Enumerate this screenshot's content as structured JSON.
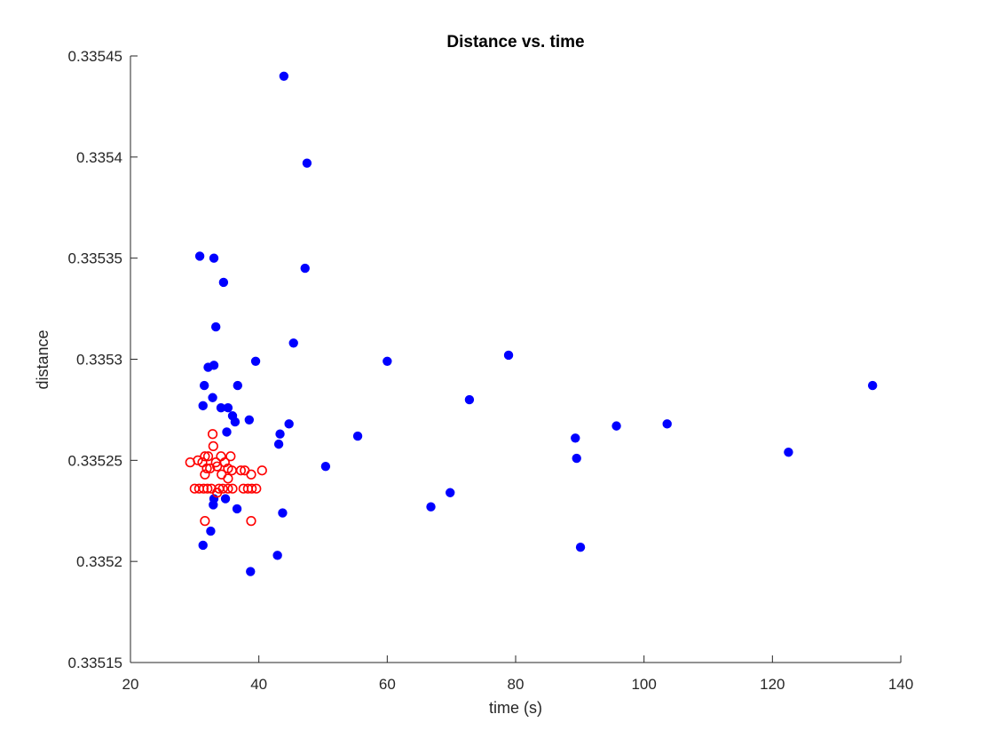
{
  "chart_data": {
    "type": "scatter",
    "title": "Distance vs. time",
    "xlabel": "time (s)",
    "ylabel": "distance",
    "xlim": [
      20,
      140
    ],
    "ylim": [
      0.33515,
      0.33545
    ],
    "xticks": [
      20,
      40,
      60,
      80,
      100,
      120,
      140
    ],
    "yticks": [
      0.33515,
      0.3352,
      0.33525,
      0.3353,
      0.33535,
      0.3354,
      0.33545
    ],
    "ytick_labels": [
      "0.33515",
      "0.3352",
      "0.33525",
      "0.3353",
      "0.33535",
      "0.3354",
      "0.33545"
    ],
    "grid": false,
    "series": [
      {
        "marker": "filled-circle",
        "color": "#0000ff",
        "points": [
          [
            43.9,
            0.33544
          ],
          [
            47.5,
            0.335397
          ],
          [
            30.8,
            0.335351
          ],
          [
            33.0,
            0.33535
          ],
          [
            47.2,
            0.335345
          ],
          [
            34.5,
            0.335338
          ],
          [
            33.3,
            0.335316
          ],
          [
            45.4,
            0.335308
          ],
          [
            32.1,
            0.335296
          ],
          [
            33.0,
            0.335297
          ],
          [
            39.5,
            0.335299
          ],
          [
            60.0,
            0.335299
          ],
          [
            78.9,
            0.335302
          ],
          [
            31.5,
            0.335287
          ],
          [
            36.7,
            0.335287
          ],
          [
            135.6,
            0.335287
          ],
          [
            32.8,
            0.335281
          ],
          [
            72.8,
            0.33528
          ],
          [
            31.3,
            0.335277
          ],
          [
            34.1,
            0.335276
          ],
          [
            35.2,
            0.335276
          ],
          [
            35.9,
            0.335272
          ],
          [
            38.5,
            0.33527
          ],
          [
            36.3,
            0.335269
          ],
          [
            44.7,
            0.335268
          ],
          [
            95.7,
            0.335267
          ],
          [
            103.6,
            0.335268
          ],
          [
            35.0,
            0.335264
          ],
          [
            43.3,
            0.335263
          ],
          [
            55.4,
            0.335262
          ],
          [
            89.3,
            0.335261
          ],
          [
            43.1,
            0.335258
          ],
          [
            122.5,
            0.335254
          ],
          [
            89.5,
            0.335251
          ],
          [
            50.4,
            0.335247
          ],
          [
            69.8,
            0.335234
          ],
          [
            33.0,
            0.335231
          ],
          [
            32.9,
            0.335228
          ],
          [
            34.8,
            0.335231
          ],
          [
            66.8,
            0.335227
          ],
          [
            36.6,
            0.335226
          ],
          [
            43.7,
            0.335224
          ],
          [
            32.5,
            0.335215
          ],
          [
            31.3,
            0.335208
          ],
          [
            90.1,
            0.335207
          ],
          [
            42.9,
            0.335203
          ],
          [
            38.7,
            0.335195
          ]
        ]
      },
      {
        "marker": "open-circle",
        "color": "#ff0000",
        "points": [
          [
            32.8,
            0.335263
          ],
          [
            32.9,
            0.335257
          ],
          [
            31.6,
            0.335252
          ],
          [
            32.1,
            0.335252
          ],
          [
            34.1,
            0.335252
          ],
          [
            35.6,
            0.335252
          ],
          [
            29.3,
            0.335249
          ],
          [
            30.5,
            0.33525
          ],
          [
            31.2,
            0.335249
          ],
          [
            33.3,
            0.335249
          ],
          [
            34.7,
            0.335249
          ],
          [
            31.9,
            0.335246
          ],
          [
            32.4,
            0.335246
          ],
          [
            33.5,
            0.335247
          ],
          [
            35.2,
            0.335246
          ],
          [
            35.8,
            0.335245
          ],
          [
            37.2,
            0.335245
          ],
          [
            37.8,
            0.335245
          ],
          [
            40.5,
            0.335245
          ],
          [
            31.6,
            0.335243
          ],
          [
            34.2,
            0.335243
          ],
          [
            38.8,
            0.335243
          ],
          [
            35.2,
            0.335241
          ],
          [
            30.0,
            0.335236
          ],
          [
            30.7,
            0.335236
          ],
          [
            31.4,
            0.335236
          ],
          [
            32.0,
            0.335236
          ],
          [
            32.6,
            0.335236
          ],
          [
            33.8,
            0.335236
          ],
          [
            34.4,
            0.335236
          ],
          [
            35.2,
            0.335236
          ],
          [
            35.9,
            0.335236
          ],
          [
            37.6,
            0.335236
          ],
          [
            38.3,
            0.335236
          ],
          [
            38.9,
            0.335236
          ],
          [
            39.6,
            0.335236
          ],
          [
            33.5,
            0.335234
          ],
          [
            31.6,
            0.33522
          ],
          [
            38.8,
            0.33522
          ]
        ]
      }
    ]
  }
}
